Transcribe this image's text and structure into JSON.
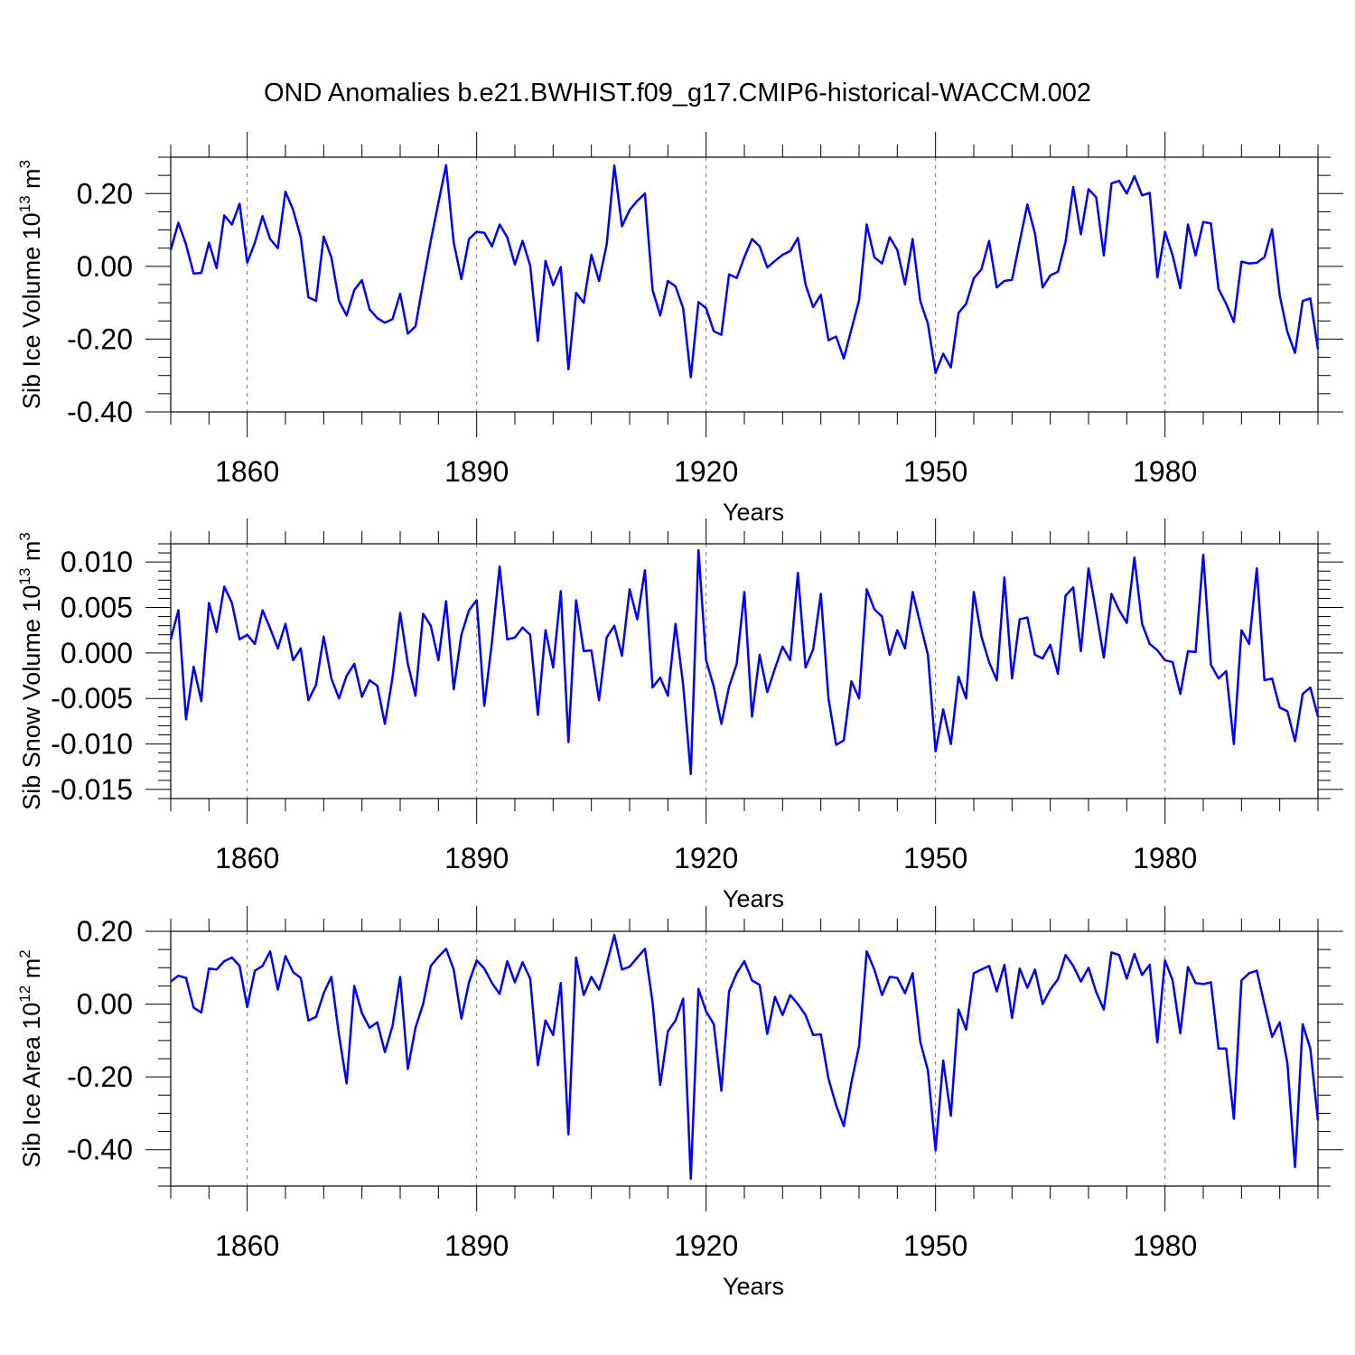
{
  "figure": {
    "title": "OND Anomalies b.e21.BWHIST.f09_g17.CMIP6-historical-WACCM.002",
    "line_color": "#0000ff"
  },
  "chart_data": [
    {
      "type": "line",
      "name": "sib-ice-volume",
      "ylabel": {
        "main": "Sib Ice Volume 10",
        "exp": "13",
        "unit": " m",
        "unit_exp": "3"
      },
      "xlabel": "Years",
      "xlim": [
        1850,
        2000
      ],
      "ylim": [
        -0.4,
        0.3
      ],
      "yticks": [
        -0.4,
        -0.2,
        0.0,
        0.2
      ],
      "ytick_labels": [
        "-0.40",
        "-0.20",
        "0.00",
        "0.20"
      ],
      "yminor_step": 0.05,
      "xticks": [
        1860,
        1890,
        1920,
        1950,
        1980
      ],
      "xtick_labels": [
        "1860",
        "1890",
        "1920",
        "1950",
        "1980"
      ],
      "xminor_step": 5,
      "grid_x": true,
      "x_start": 1850,
      "values": [
        0.045,
        0.12,
        0.06,
        -0.02,
        -0.018,
        0.065,
        -0.005,
        0.14,
        0.115,
        0.172,
        0.01,
        0.065,
        0.138,
        0.075,
        0.05,
        0.205,
        0.155,
        0.08,
        -0.085,
        -0.095,
        0.082,
        0.025,
        -0.095,
        -0.135,
        -0.065,
        -0.038,
        -0.118,
        -0.142,
        -0.155,
        -0.145,
        -0.075,
        -0.185,
        -0.165,
        -0.045,
        0.07,
        0.175,
        0.278,
        0.065,
        -0.035,
        0.075,
        0.095,
        0.092,
        0.055,
        0.115,
        0.08,
        0.005,
        0.07,
        0.002,
        -0.205,
        0.015,
        -0.052,
        -0.002,
        -0.283,
        -0.073,
        -0.1,
        0.032,
        -0.04,
        0.06,
        0.277,
        0.11,
        0.155,
        0.18,
        0.2,
        -0.065,
        -0.135,
        -0.04,
        -0.055,
        -0.115,
        -0.305,
        -0.098,
        -0.115,
        -0.178,
        -0.188,
        -0.022,
        -0.032,
        0.025,
        0.075,
        0.055,
        -0.003,
        0.015,
        0.032,
        0.042,
        0.078,
        -0.05,
        -0.112,
        -0.078,
        -0.203,
        -0.193,
        -0.253,
        -0.173,
        -0.093,
        0.115,
        0.025,
        0.008,
        0.08,
        0.045,
        -0.05,
        0.075,
        -0.095,
        -0.158,
        -0.293,
        -0.24,
        -0.278,
        -0.128,
        -0.103,
        -0.033,
        -0.008,
        0.07,
        -0.058,
        -0.04,
        -0.037,
        0.068,
        0.17,
        0.09,
        -0.058,
        -0.025,
        -0.015,
        0.068,
        0.218,
        0.088,
        0.212,
        0.19,
        0.03,
        0.228,
        0.235,
        0.2,
        0.248,
        0.195,
        0.202,
        -0.03,
        0.095,
        0.03,
        -0.06,
        0.115,
        0.03,
        0.122,
        0.118,
        -0.062,
        -0.103,
        -0.153,
        0.013,
        0.008,
        0.01,
        0.025,
        0.102,
        -0.08,
        -0.18,
        -0.238,
        -0.095,
        -0.088,
        -0.228
      ]
    },
    {
      "type": "line",
      "name": "sib-snow-volume",
      "ylabel": {
        "main": "Sib Snow Volume 10",
        "exp": "13",
        "unit": " m",
        "unit_exp": "3"
      },
      "xlabel": "Years",
      "xlim": [
        1850,
        2000
      ],
      "ylim": [
        -0.016,
        0.012
      ],
      "yticks": [
        -0.015,
        -0.01,
        -0.005,
        0.0,
        0.005,
        0.01
      ],
      "ytick_labels": [
        "-0.015",
        "-0.010",
        "-0.005",
        "0.000",
        "0.005",
        "0.010"
      ],
      "yminor_step": 0.001,
      "xticks": [
        1860,
        1890,
        1920,
        1950,
        1980
      ],
      "xtick_labels": [
        "1860",
        "1890",
        "1920",
        "1950",
        "1980"
      ],
      "xminor_step": 5,
      "grid_x": true,
      "x_start": 1850,
      "values": [
        0.0015,
        0.0047,
        -0.0073,
        -0.0015,
        -0.0053,
        0.0055,
        0.0023,
        0.0073,
        0.0055,
        0.0015,
        0.002,
        0.001,
        0.0047,
        0.0027,
        0.0005,
        0.0032,
        -0.0008,
        0.0005,
        -0.0052,
        -0.0035,
        0.0018,
        -0.0028,
        -0.005,
        -0.0025,
        -0.0012,
        -0.0048,
        -0.003,
        -0.0036,
        -0.0078,
        -0.0027,
        0.0044,
        -0.0012,
        -0.0047,
        0.0043,
        0.003,
        -0.0008,
        0.0057,
        -0.004,
        0.002,
        0.0047,
        0.0058,
        -0.0058,
        0.0012,
        0.0095,
        0.0015,
        0.0017,
        0.0028,
        0.002,
        -0.0068,
        0.0025,
        -0.0016,
        0.0068,
        -0.0098,
        0.0058,
        0.0002,
        0.0003,
        -0.0052,
        0.0017,
        0.003,
        -0.0003,
        0.007,
        0.0037,
        0.0091,
        -0.0038,
        -0.0027,
        -0.0047,
        0.0032,
        -0.0035,
        -0.0133,
        0.0113,
        -0.0008,
        -0.0037,
        -0.0078,
        -0.0037,
        -0.0012,
        0.0067,
        -0.007,
        -0.0002,
        -0.0043,
        -0.0017,
        0.0007,
        -0.0008,
        0.0088,
        -0.0016,
        0.0004,
        0.0065,
        -0.005,
        -0.0101,
        -0.0096,
        -0.0031,
        -0.005,
        0.007,
        0.0048,
        0.004,
        -0.0002,
        0.0025,
        0.0005,
        0.0067,
        0.0032,
        -0.0002,
        -0.0108,
        -0.0062,
        -0.01,
        -0.0026,
        -0.005,
        0.0067,
        0.0018,
        -0.001,
        -0.003,
        0.0083,
        -0.0028,
        0.0037,
        0.0039,
        -0.0002,
        -0.0006,
        0.0009,
        -0.0023,
        0.0063,
        0.0072,
        0.0002,
        0.0093,
        0.0045,
        -0.0005,
        0.0065,
        0.0047,
        0.0033,
        0.0105,
        0.0032,
        0.001,
        0.0003,
        -0.0008,
        -0.001,
        -0.0045,
        0.0002,
        0.0001,
        0.0108,
        -0.0013,
        -0.0028,
        -0.002,
        -0.01,
        0.0025,
        0.001,
        0.0093,
        -0.003,
        -0.0028,
        -0.006,
        -0.0064,
        -0.0097,
        -0.0045,
        -0.0038,
        -0.007
      ]
    },
    {
      "type": "line",
      "name": "sib-ice-area",
      "ylabel": {
        "main": "Sib Ice Area 10",
        "exp": "12",
        "unit": " m",
        "unit_exp": "2"
      },
      "xlabel": "Years",
      "xlim": [
        1850,
        2000
      ],
      "ylim": [
        -0.5,
        0.2
      ],
      "yticks": [
        -0.4,
        -0.2,
        0.0,
        0.2
      ],
      "ytick_labels": [
        "-0.40",
        "-0.20",
        "0.00",
        "0.20"
      ],
      "yminor_step": 0.05,
      "xticks": [
        1860,
        1890,
        1920,
        1950,
        1980
      ],
      "xtick_labels": [
        "1860",
        "1890",
        "1920",
        "1950",
        "1980"
      ],
      "xminor_step": 5,
      "grid_x": true,
      "x_start": 1850,
      "values": [
        0.062,
        0.078,
        0.072,
        -0.01,
        -0.023,
        0.098,
        0.095,
        0.118,
        0.128,
        0.105,
        -0.008,
        0.092,
        0.105,
        0.145,
        0.04,
        0.132,
        0.088,
        0.072,
        -0.045,
        -0.035,
        0.03,
        0.075,
        -0.085,
        -0.218,
        0.05,
        -0.025,
        -0.065,
        -0.05,
        -0.132,
        -0.06,
        0.075,
        -0.178,
        -0.065,
        0.0,
        0.105,
        0.13,
        0.152,
        0.095,
        -0.04,
        0.06,
        0.12,
        0.098,
        0.058,
        0.028,
        0.118,
        0.06,
        0.115,
        0.07,
        -0.168,
        -0.045,
        -0.085,
        0.058,
        -0.358,
        0.128,
        0.025,
        0.075,
        0.04,
        0.11,
        0.19,
        0.095,
        0.103,
        0.128,
        0.152,
        0.005,
        -0.222,
        -0.075,
        -0.045,
        0.015,
        -0.48,
        0.042,
        -0.02,
        -0.055,
        -0.238,
        0.035,
        0.085,
        0.118,
        0.065,
        0.053,
        -0.082,
        0.02,
        -0.03,
        0.025,
        0.0,
        -0.03,
        -0.085,
        -0.083,
        -0.205,
        -0.278,
        -0.335,
        -0.215,
        -0.115,
        0.145,
        0.095,
        0.025,
        0.075,
        0.072,
        0.03,
        0.085,
        -0.103,
        -0.182,
        -0.402,
        -0.155,
        -0.307,
        -0.015,
        -0.07,
        0.085,
        0.095,
        0.105,
        0.035,
        0.108,
        -0.038,
        0.098,
        0.045,
        0.095,
        0.0,
        0.04,
        0.068,
        0.135,
        0.105,
        0.062,
        0.1,
        0.033,
        -0.015,
        0.142,
        0.135,
        0.07,
        0.138,
        0.08,
        0.108,
        -0.105,
        0.12,
        0.065,
        -0.08,
        0.102,
        0.058,
        0.055,
        0.06,
        -0.122,
        -0.122,
        -0.315,
        0.065,
        0.085,
        0.092,
        0.0,
        -0.09,
        -0.05,
        -0.162,
        -0.448,
        -0.055,
        -0.122,
        -0.32
      ]
    }
  ]
}
